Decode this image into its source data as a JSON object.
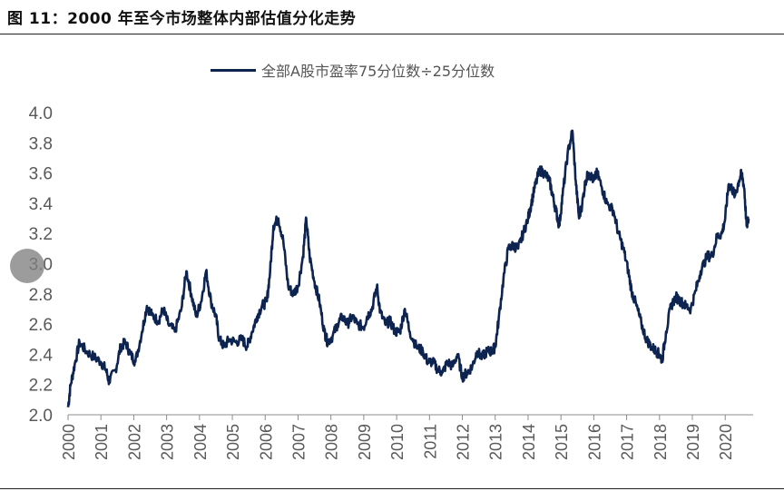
{
  "figure": {
    "title": "图 11：2000 年至今市场整体内部估值分化走势"
  },
  "chart_data": {
    "type": "line",
    "legend_position": "top-center",
    "grid": false,
    "series": [
      {
        "name": "全部A股市盈率75分位数÷25分位数",
        "color": "#0d2350",
        "points": [
          [
            2000.0,
            2.05
          ],
          [
            2000.08,
            2.2
          ],
          [
            2000.2,
            2.33
          ],
          [
            2000.35,
            2.48
          ],
          [
            2000.55,
            2.42
          ],
          [
            2000.8,
            2.38
          ],
          [
            2001.0,
            2.35
          ],
          [
            2001.15,
            2.3
          ],
          [
            2001.25,
            2.22
          ],
          [
            2001.45,
            2.3
          ],
          [
            2001.6,
            2.45
          ],
          [
            2001.75,
            2.48
          ],
          [
            2001.9,
            2.4
          ],
          [
            2002.05,
            2.35
          ],
          [
            2002.25,
            2.55
          ],
          [
            2002.4,
            2.72
          ],
          [
            2002.55,
            2.66
          ],
          [
            2002.75,
            2.62
          ],
          [
            2002.9,
            2.7
          ],
          [
            2003.05,
            2.6
          ],
          [
            2003.25,
            2.55
          ],
          [
            2003.45,
            2.7
          ],
          [
            2003.6,
            2.95
          ],
          [
            2003.75,
            2.8
          ],
          [
            2003.9,
            2.65
          ],
          [
            2004.05,
            2.75
          ],
          [
            2004.2,
            2.95
          ],
          [
            2004.35,
            2.75
          ],
          [
            2004.5,
            2.65
          ],
          [
            2004.6,
            2.5
          ],
          [
            2004.75,
            2.45
          ],
          [
            2004.9,
            2.5
          ],
          [
            2005.1,
            2.48
          ],
          [
            2005.3,
            2.5
          ],
          [
            2005.45,
            2.45
          ],
          [
            2005.6,
            2.55
          ],
          [
            2005.75,
            2.65
          ],
          [
            2005.9,
            2.72
          ],
          [
            2006.05,
            2.75
          ],
          [
            2006.15,
            2.95
          ],
          [
            2006.25,
            3.25
          ],
          [
            2006.4,
            3.3
          ],
          [
            2006.55,
            3.15
          ],
          [
            2006.7,
            2.85
          ],
          [
            2006.85,
            2.8
          ],
          [
            2007.0,
            2.85
          ],
          [
            2007.15,
            3.05
          ],
          [
            2007.25,
            3.3
          ],
          [
            2007.35,
            3.05
          ],
          [
            2007.5,
            2.88
          ],
          [
            2007.65,
            2.75
          ],
          [
            2007.8,
            2.55
          ],
          [
            2007.9,
            2.48
          ],
          [
            2008.05,
            2.52
          ],
          [
            2008.2,
            2.6
          ],
          [
            2008.35,
            2.65
          ],
          [
            2008.5,
            2.6
          ],
          [
            2008.65,
            2.65
          ],
          [
            2008.8,
            2.6
          ],
          [
            2009.0,
            2.58
          ],
          [
            2009.1,
            2.65
          ],
          [
            2009.25,
            2.7
          ],
          [
            2009.4,
            2.85
          ],
          [
            2009.5,
            2.68
          ],
          [
            2009.65,
            2.6
          ],
          [
            2009.8,
            2.62
          ],
          [
            2009.95,
            2.55
          ],
          [
            2010.1,
            2.55
          ],
          [
            2010.25,
            2.7
          ],
          [
            2010.4,
            2.55
          ],
          [
            2010.6,
            2.45
          ],
          [
            2010.8,
            2.42
          ],
          [
            2010.95,
            2.35
          ],
          [
            2011.1,
            2.35
          ],
          [
            2011.25,
            2.3
          ],
          [
            2011.4,
            2.28
          ],
          [
            2011.55,
            2.35
          ],
          [
            2011.7,
            2.32
          ],
          [
            2011.85,
            2.4
          ],
          [
            2012.0,
            2.25
          ],
          [
            2012.15,
            2.28
          ],
          [
            2012.3,
            2.32
          ],
          [
            2012.45,
            2.42
          ],
          [
            2012.6,
            2.38
          ],
          [
            2012.75,
            2.42
          ],
          [
            2012.9,
            2.42
          ],
          [
            2013.0,
            2.45
          ],
          [
            2013.1,
            2.62
          ],
          [
            2013.25,
            2.9
          ],
          [
            2013.4,
            3.1
          ],
          [
            2013.55,
            3.12
          ],
          [
            2013.7,
            3.1
          ],
          [
            2013.85,
            3.2
          ],
          [
            2014.0,
            3.3
          ],
          [
            2014.1,
            3.4
          ],
          [
            2014.2,
            3.5
          ],
          [
            2014.35,
            3.62
          ],
          [
            2014.5,
            3.6
          ],
          [
            2014.65,
            3.55
          ],
          [
            2014.75,
            3.45
          ],
          [
            2014.85,
            3.35
          ],
          [
            2014.95,
            3.25
          ],
          [
            2015.05,
            3.45
          ],
          [
            2015.2,
            3.72
          ],
          [
            2015.35,
            3.88
          ],
          [
            2015.45,
            3.55
          ],
          [
            2015.55,
            3.3
          ],
          [
            2015.65,
            3.4
          ],
          [
            2015.75,
            3.55
          ],
          [
            2015.85,
            3.6
          ],
          [
            2016.0,
            3.55
          ],
          [
            2016.1,
            3.6
          ],
          [
            2016.25,
            3.5
          ],
          [
            2016.4,
            3.4
          ],
          [
            2016.6,
            3.35
          ],
          [
            2016.75,
            3.2
          ],
          [
            2016.9,
            3.1
          ],
          [
            2017.05,
            2.95
          ],
          [
            2017.15,
            2.82
          ],
          [
            2017.3,
            2.72
          ],
          [
            2017.45,
            2.6
          ],
          [
            2017.6,
            2.5
          ],
          [
            2017.75,
            2.45
          ],
          [
            2017.9,
            2.42
          ],
          [
            2018.0,
            2.4
          ],
          [
            2018.08,
            2.36
          ],
          [
            2018.2,
            2.55
          ],
          [
            2018.35,
            2.72
          ],
          [
            2018.5,
            2.78
          ],
          [
            2018.65,
            2.75
          ],
          [
            2018.8,
            2.72
          ],
          [
            2018.95,
            2.7
          ],
          [
            2019.1,
            2.82
          ],
          [
            2019.25,
            2.95
          ],
          [
            2019.45,
            3.05
          ],
          [
            2019.6,
            3.05
          ],
          [
            2019.75,
            3.18
          ],
          [
            2019.9,
            3.2
          ],
          [
            2020.0,
            3.3
          ],
          [
            2020.1,
            3.52
          ],
          [
            2020.2,
            3.5
          ],
          [
            2020.3,
            3.45
          ],
          [
            2020.42,
            3.55
          ],
          [
            2020.5,
            3.6
          ],
          [
            2020.58,
            3.5
          ],
          [
            2020.65,
            3.25
          ],
          [
            2020.72,
            3.3
          ]
        ]
      }
    ],
    "x_range": [
      2000,
      2020.85
    ],
    "x_ticks": [
      "2000",
      "2001",
      "2002",
      "2003",
      "2004",
      "2005",
      "2006",
      "2007",
      "2008",
      "2009",
      "2010",
      "2011",
      "2012",
      "2013",
      "2014",
      "2015",
      "2016",
      "2017",
      "2018",
      "2019",
      "2020"
    ],
    "y_range": [
      2.0,
      4.0
    ],
    "y_ticks": [
      "2.0",
      "2.2",
      "2.4",
      "2.6",
      "2.8",
      "3.0",
      "3.2",
      "3.4",
      "3.6",
      "3.8",
      "4.0"
    ]
  }
}
